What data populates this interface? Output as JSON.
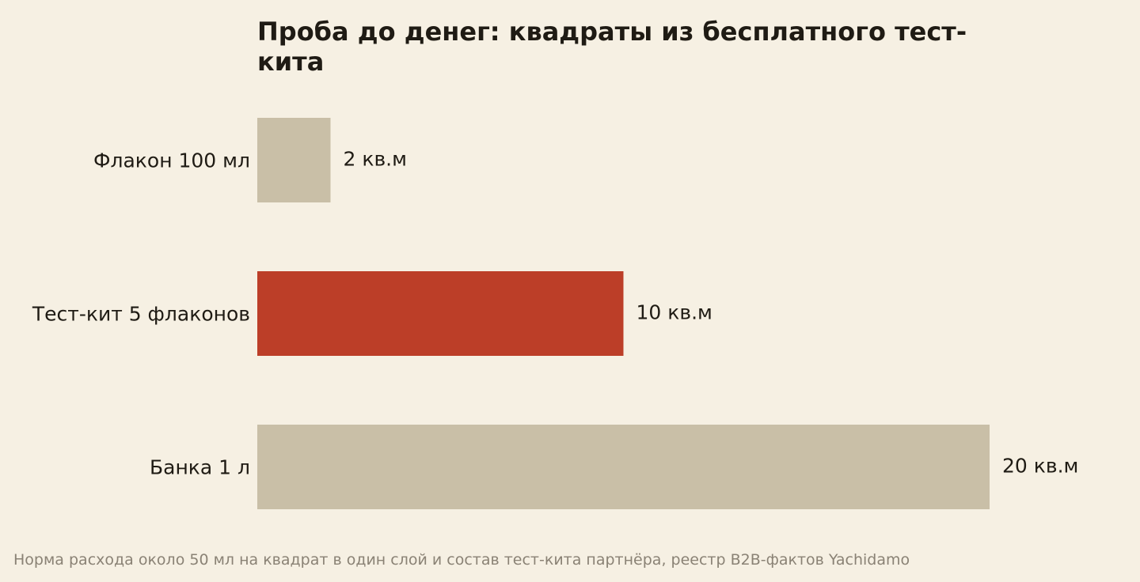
{
  "chart_data": {
    "type": "bar",
    "orientation": "horizontal",
    "title_lines": [
      "Проба до денег: квадраты из бесплатного тест-",
      "кита"
    ],
    "categories": [
      "Флакон 100 мл",
      "Тест-кит 5 флаконов",
      "Банка 1 л"
    ],
    "values": [
      2,
      10,
      20
    ],
    "value_labels": [
      "2 кв.м",
      "10 кв.м",
      "20 кв.м"
    ],
    "unit": "кв.м",
    "xlim": [
      0,
      20
    ],
    "grid": false,
    "colors": {
      "default": "#c9bfa7",
      "highlight": "#bc3e28",
      "background": "#f6f0e3",
      "text": "#1f1b14",
      "source": "#8a8275"
    },
    "highlight_index": 1,
    "source": "Норма расхода около 50 мл на квадрат в один слой и состав тест-кита партнёра, реестр B2B-фактов Yachidamo"
  }
}
